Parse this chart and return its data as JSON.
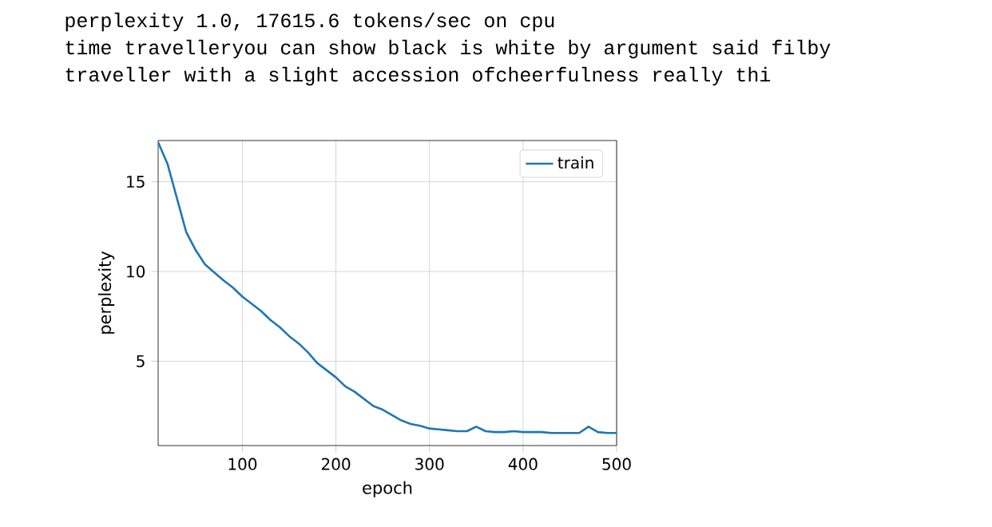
{
  "chart_data": {
    "type": "line",
    "annotations": [
      "perplexity 1.0, 17615.6 tokens/sec on cpu",
      "time travelleryou can show black is white by argument said filby",
      "traveller with a slight accession ofcheerfulness really thi"
    ],
    "xlabel": "epoch",
    "ylabel": "perplexity",
    "x": [
      10,
      20,
      30,
      40,
      50,
      60,
      70,
      80,
      90,
      100,
      110,
      120,
      130,
      140,
      150,
      160,
      170,
      180,
      190,
      200,
      210,
      220,
      230,
      240,
      250,
      260,
      270,
      280,
      290,
      300,
      310,
      320,
      330,
      340,
      350,
      360,
      370,
      380,
      390,
      400,
      410,
      420,
      430,
      440,
      450,
      460,
      470,
      480,
      490,
      500
    ],
    "series": [
      {
        "name": "train",
        "color": "#1f77b4",
        "values": [
          17.2,
          16.0,
          14.1,
          12.2,
          11.2,
          10.4,
          9.95,
          9.5,
          9.1,
          8.6,
          8.2,
          7.8,
          7.3,
          6.9,
          6.4,
          6.0,
          5.5,
          4.9,
          4.5,
          4.1,
          3.6,
          3.3,
          2.9,
          2.5,
          2.3,
          2.0,
          1.7,
          1.5,
          1.4,
          1.25,
          1.2,
          1.15,
          1.1,
          1.1,
          1.35,
          1.1,
          1.05,
          1.05,
          1.1,
          1.05,
          1.05,
          1.05,
          1.0,
          1.0,
          1.0,
          1.0,
          1.35,
          1.05,
          1.0,
          1.0
        ]
      }
    ],
    "xlim": [
      10,
      500
    ],
    "ylim": [
      0.3,
      17.3
    ],
    "xticks": [
      100,
      200,
      300,
      400,
      500
    ],
    "yticks": [
      5,
      10,
      15
    ],
    "grid": true,
    "legend": "top right"
  }
}
